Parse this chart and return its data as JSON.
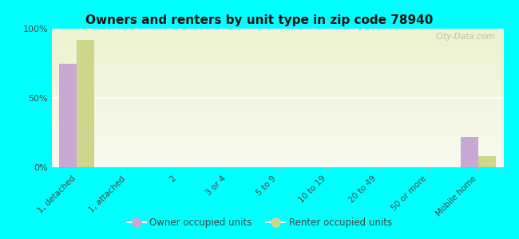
{
  "title": "Owners and renters by unit type in zip code 78940",
  "categories": [
    "1, detached",
    "1, attached",
    "2",
    "3 or 4",
    "5 to 9",
    "10 to 19",
    "20 to 49",
    "50 or more",
    "Mobile home"
  ],
  "owner_values": [
    75,
    0,
    0,
    0,
    0,
    0,
    0,
    0,
    22
  ],
  "renter_values": [
    92,
    0,
    0,
    0,
    0,
    0,
    0,
    0,
    8
  ],
  "owner_color": "#c9a8d4",
  "renter_color": "#cdd68a",
  "background_color": "#00ffff",
  "plot_bg_top": "#edf2d0",
  "plot_bg_bottom": "#f8faf0",
  "ylim": [
    0,
    100
  ],
  "yticks": [
    0,
    50,
    100
  ],
  "ytick_labels": [
    "0%",
    "50%",
    "100%"
  ],
  "bar_width": 0.35,
  "legend_owner": "Owner occupied units",
  "legend_renter": "Renter occupied units",
  "watermark": "City-Data.com"
}
